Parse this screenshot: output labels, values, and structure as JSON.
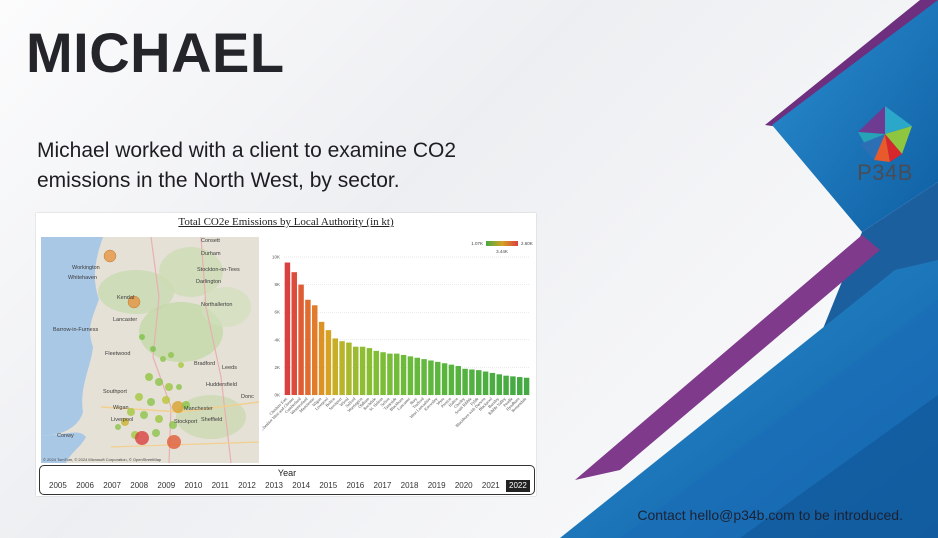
{
  "slide": {
    "title": "MICHAEL",
    "description": "Michael worked with a client to examine CO2 emissions in the North West, by sector.",
    "contact": "Contact hello@p34b.com to be introduced.",
    "logo_text": "P34B"
  },
  "dashboard": {
    "title": "Total CO2e Emissions by Local Authority (in kt)",
    "legend": {
      "min_label": "1.07K",
      "mid_label": "3.44K",
      "max_label": "2.60K"
    },
    "map": {
      "labels": [
        "Consett",
        "Durham",
        "Workington",
        "Whitehaven",
        "Stockton-on-Tees",
        "Darlington",
        "Northallerton",
        "Kendal",
        "Barrow-in-Furness",
        "Lancaster",
        "Fleetwood",
        "Bradford",
        "Leeds",
        "Huddersfield",
        "Southport",
        "Manchester",
        "Sheffield",
        "Stockport",
        "Conwy",
        "Donc",
        "Wigan",
        "Liverpool"
      ],
      "credit": "© 2024 TomTom, © 2024 Microsoft Corporation, © OpenStreetMap"
    },
    "timeline": {
      "label": "Year",
      "years": [
        "2005",
        "2006",
        "2007",
        "2008",
        "2009",
        "2010",
        "2011",
        "2012",
        "2013",
        "2014",
        "2015",
        "2016",
        "2017",
        "2018",
        "2019",
        "2020",
        "2021",
        "2022"
      ],
      "selected": "2022"
    }
  },
  "chart_data": {
    "type": "bar",
    "title": "Total CO2e Emissions by Local Authority (in kt)",
    "yticks": [
      "0K",
      "2K",
      "4K",
      "6K",
      "8K",
      "10K"
    ],
    "ylim": [
      0,
      10000
    ],
    "categories": [
      "Cheshire East",
      "Cheshire West and Chester",
      "Cumberland",
      "Westmorland",
      "Manchester",
      "Wigan",
      "Liverpool",
      "Bolton",
      "Stockport",
      "Wirral",
      "Salford",
      "Warrington",
      "Oldham",
      "Rochdale",
      "St. Helens",
      "Sefton",
      "Tameside",
      "Blackburn",
      "Lancaster",
      "Bury",
      "Trafford",
      "West Lancashire",
      "Knowsley",
      "Wyre",
      "Preston",
      "Halton",
      "Chorley",
      "South Ribble",
      "Fylde",
      "Blackburn with Darwen",
      "Blackpool",
      "Burnley",
      "Ribble Valley",
      "Pendle",
      "Hyndburn",
      "Rossendale"
    ],
    "values": [
      9600,
      8900,
      8000,
      6900,
      6500,
      5300,
      4700,
      4100,
      3900,
      3800,
      3500,
      3500,
      3400,
      3200,
      3100,
      3000,
      3000,
      2900,
      2800,
      2700,
      2600,
      2500,
      2400,
      2300,
      2200,
      2100,
      1900,
      1850,
      1800,
      1700,
      1600,
      1500,
      1400,
      1350,
      1300,
      1250
    ],
    "colors": [
      "#d94040",
      "#dd4b3b",
      "#e05c36",
      "#e06c30",
      "#e07c2c",
      "#dd9226",
      "#d6a323",
      "#c8ad26",
      "#b9b42a",
      "#a9b82d",
      "#9bbb30",
      "#90be32",
      "#89be34",
      "#82be35",
      "#7cbd37",
      "#77bd38",
      "#72bc39",
      "#6ebb3a",
      "#6aba3b",
      "#66b93c",
      "#63b83d",
      "#60b73d",
      "#5db63e",
      "#5ab53e",
      "#58b43f",
      "#56b33f",
      "#54b240",
      "#52b140",
      "#50b041",
      "#4eaf41",
      "#4cae42",
      "#4aad42",
      "#48ac43",
      "#47ab43",
      "#46aa44",
      "#45a944"
    ]
  }
}
